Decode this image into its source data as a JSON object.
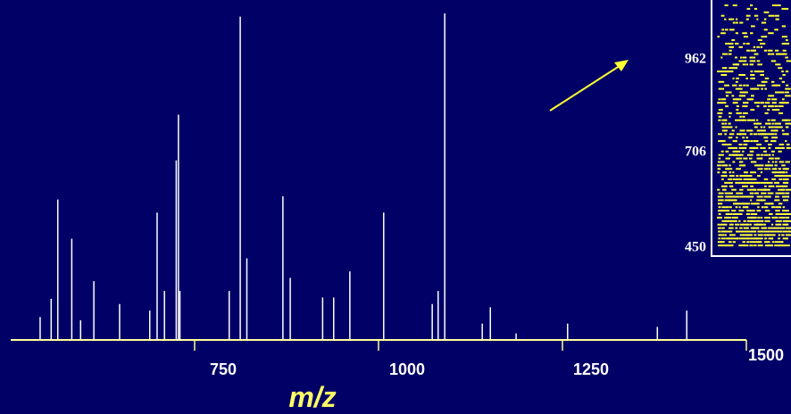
{
  "chart_data": {
    "type": "spectrum",
    "x_label": "m/z",
    "x": [
      540,
      555,
      564,
      583,
      595,
      613,
      648,
      689,
      699,
      709,
      725,
      728,
      730,
      797,
      812,
      821,
      870,
      880,
      924,
      939,
      961,
      1007,
      1073,
      1081,
      1090,
      1141,
      1152,
      1187,
      1257,
      1379,
      1419
    ],
    "values": [
      7,
      12.6,
      43,
      31,
      6,
      18,
      11,
      9,
      39,
      15,
      55,
      69,
      15,
      15,
      99,
      25,
      44,
      19,
      13,
      13,
      21,
      39,
      11,
      15,
      100,
      5,
      10,
      2,
      5,
      4,
      9
    ],
    "color": "#ffffff",
    "xlim": [
      500,
      1500
    ],
    "xticks": [
      750,
      1000,
      1250,
      1500
    ],
    "ylim": [
      0,
      100
    ],
    "inset": {
      "yticks": [
        962,
        706,
        450
      ]
    }
  }
}
